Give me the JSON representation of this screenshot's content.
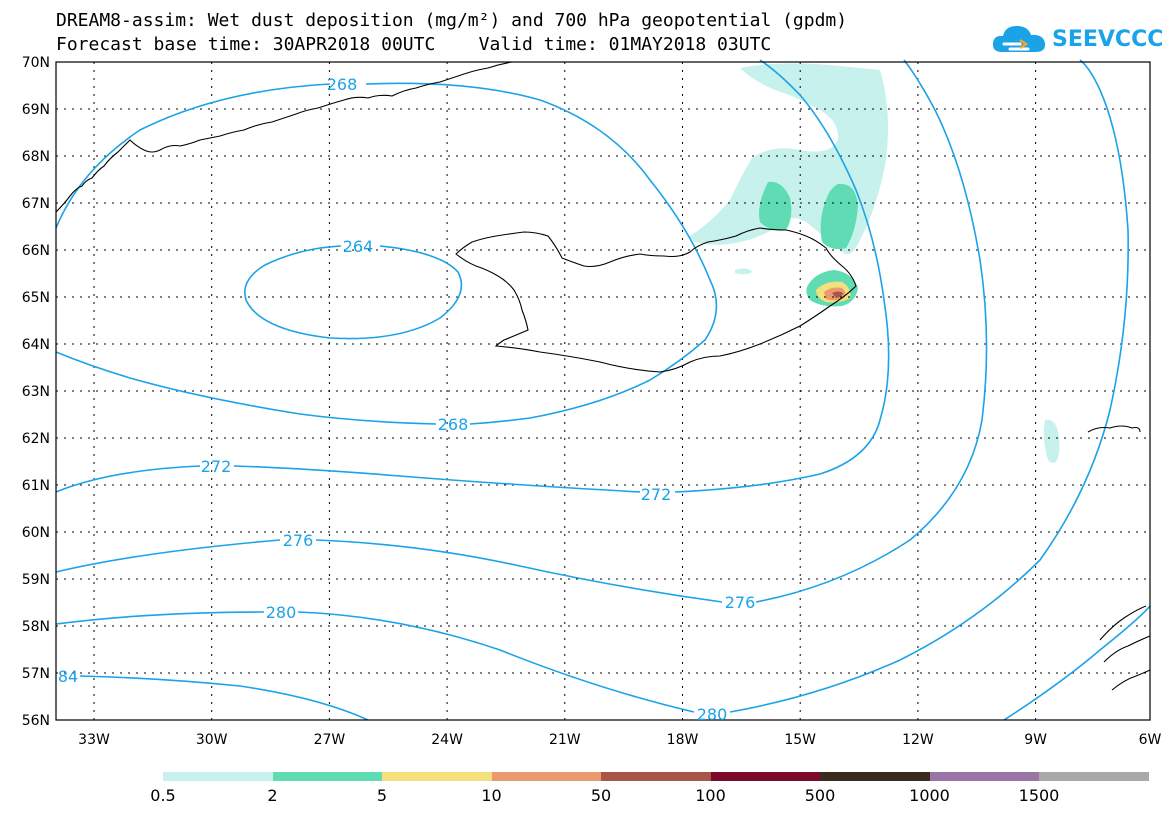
{
  "header": {
    "title_line1": "DREAM8-assim: Wet dust deposition (mg/m²) and 700 hPa geopotential (gpdm)",
    "title_line2": "Forecast base time: 30APR2018 00UTC    Valid time: 01MAY2018 03UTC"
  },
  "logo": {
    "text": "SEEVCCC",
    "color": "#1ba3e8"
  },
  "map": {
    "lat_labels": [
      "70N",
      "69N",
      "68N",
      "67N",
      "66N",
      "65N",
      "64N",
      "63N",
      "62N",
      "61N",
      "60N",
      "59N",
      "58N",
      "57N",
      "56N"
    ],
    "lon_labels": [
      "33W",
      "30W",
      "27W",
      "24W",
      "21W",
      "18W",
      "15W",
      "12W",
      "9W",
      "6W"
    ],
    "contour_labels": [
      {
        "id": "268-north",
        "text": "268"
      },
      {
        "id": "264",
        "text": "264"
      },
      {
        "id": "268-south",
        "text": "268"
      },
      {
        "id": "272-west",
        "text": "272"
      },
      {
        "id": "272-east",
        "text": "272"
      },
      {
        "id": "276-west",
        "text": "276"
      },
      {
        "id": "276-east",
        "text": "276"
      },
      {
        "id": "280-west",
        "text": "280"
      },
      {
        "id": "280-south",
        "text": "280"
      },
      {
        "id": "284-edge",
        "text": "84"
      }
    ],
    "contour_color": "#1ba3e8",
    "coast_color": "#000000"
  },
  "colorbar": {
    "colors": [
      "#c6f1ec",
      "#5fdcb4",
      "#f4e07c",
      "#ea9a6c",
      "#a8564a",
      "#7a0a2a",
      "#3a2a20",
      "#9a74a4",
      "#a8a8a8"
    ],
    "labels": [
      "0.5",
      "2",
      "5",
      "10",
      "50",
      "100",
      "500",
      "1000",
      "1500"
    ]
  }
}
